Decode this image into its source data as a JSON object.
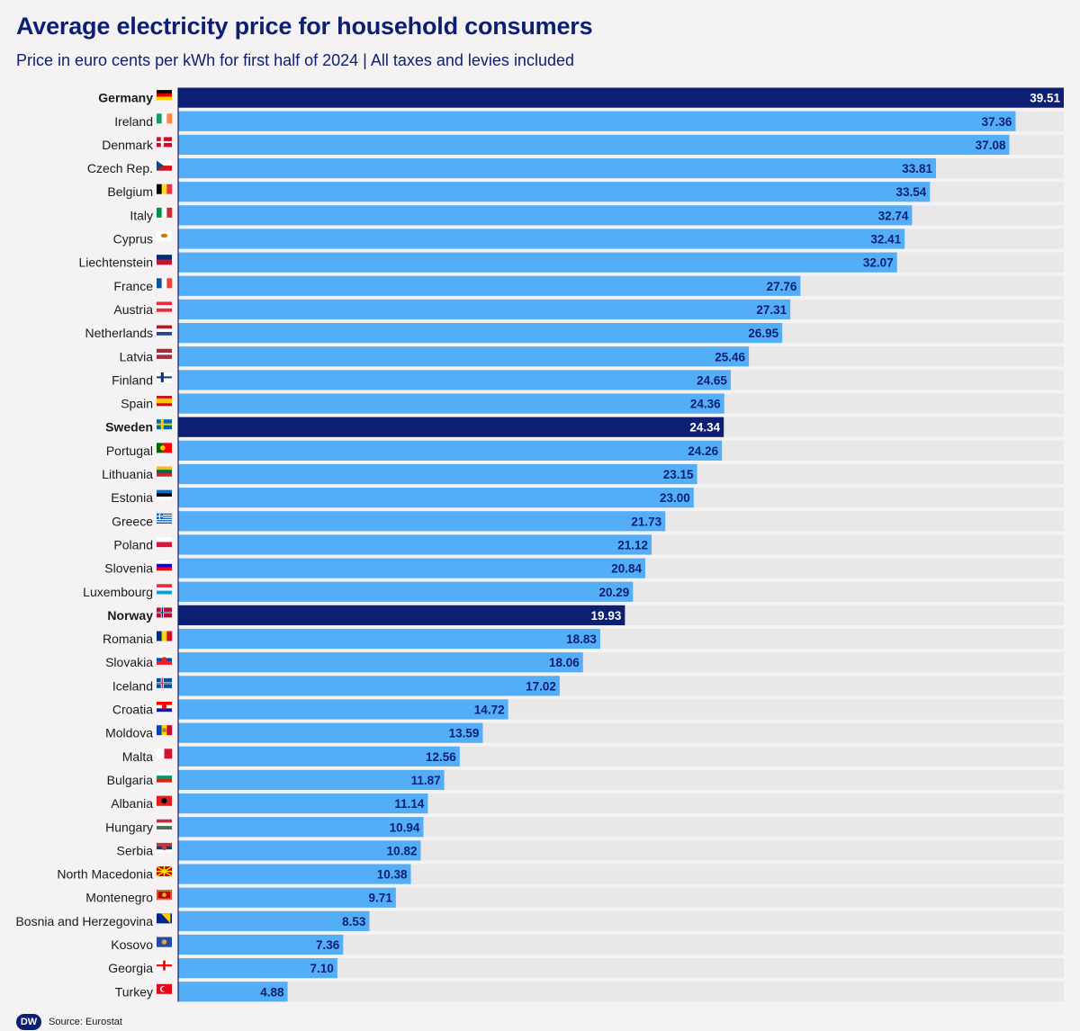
{
  "colors": {
    "bar": "#54aef7",
    "highlight": "#0c1f73",
    "track": "#e9e7e8",
    "value_dark": "#0c1f73",
    "value_light": "#ffffff"
  },
  "footer": {
    "logo": "DW",
    "source": "Source: Eurostat"
  },
  "chart_data": {
    "type": "bar",
    "orientation": "horizontal",
    "title": "Average electricity price for household consumers",
    "subtitle": "Price in euro cents per kWh for first half of 2024 | All taxes and levies included",
    "xlabel": "",
    "ylabel": "",
    "xlim": [
      0,
      39.51
    ],
    "grid": false,
    "highlighted": [
      "Germany",
      "Sweden",
      "Norway"
    ],
    "categories": [
      "Germany",
      "Ireland",
      "Denmark",
      "Czech Rep.",
      "Belgium",
      "Italy",
      "Cyprus",
      "Liechtenstein",
      "France",
      "Austria",
      "Netherlands",
      "Latvia",
      "Finland",
      "Spain",
      "Sweden",
      "Portugal",
      "Lithuania",
      "Estonia",
      "Greece",
      "Poland",
      "Slovenia",
      "Luxembourg",
      "Norway",
      "Romania",
      "Slovakia",
      "Iceland",
      "Croatia",
      "Moldova",
      "Malta",
      "Bulgaria",
      "Albania",
      "Hungary",
      "Serbia",
      "North Macedonia",
      "Montenegro",
      "Bosnia and Herzegovina",
      "Kosovo",
      "Georgia",
      "Turkey"
    ],
    "values": [
      39.51,
      37.36,
      37.08,
      33.81,
      33.54,
      32.74,
      32.41,
      32.07,
      27.76,
      27.31,
      26.95,
      25.46,
      24.65,
      24.36,
      24.34,
      24.26,
      23.15,
      23.0,
      21.73,
      21.12,
      20.84,
      20.29,
      19.93,
      18.83,
      18.06,
      17.02,
      14.72,
      13.59,
      12.56,
      11.87,
      11.14,
      10.94,
      10.82,
      10.38,
      9.71,
      8.53,
      7.36,
      7.1,
      4.88
    ],
    "value_labels": [
      "39.51",
      "37.36",
      "37.08",
      "33.81",
      "33.54",
      "32.74",
      "32.41",
      "32.07",
      "27.76",
      "27.31",
      "26.95",
      "25.46",
      "24.65",
      "24.36",
      "24.34",
      "24.26",
      "23.15",
      "23.00",
      "21.73",
      "21.12",
      "20.84",
      "20.29",
      "19.93",
      "18.83",
      "18.06",
      "17.02",
      "14.72",
      "13.59",
      "12.56",
      "11.87",
      "11.14",
      "10.94",
      "10.82",
      "10.38",
      "9.71",
      "8.53",
      "7.36",
      "7.10",
      "4.88"
    ],
    "flag_icons": [
      "germany-flag-icon",
      "ireland-flag-icon",
      "denmark-flag-icon",
      "czech-flag-icon",
      "belgium-flag-icon",
      "italy-flag-icon",
      "cyprus-flag-icon",
      "liechtenstein-flag-icon",
      "france-flag-icon",
      "austria-flag-icon",
      "netherlands-flag-icon",
      "latvia-flag-icon",
      "finland-flag-icon",
      "spain-flag-icon",
      "sweden-flag-icon",
      "portugal-flag-icon",
      "lithuania-flag-icon",
      "estonia-flag-icon",
      "greece-flag-icon",
      "poland-flag-icon",
      "slovenia-flag-icon",
      "luxembourg-flag-icon",
      "norway-flag-icon",
      "romania-flag-icon",
      "slovakia-flag-icon",
      "iceland-flag-icon",
      "croatia-flag-icon",
      "moldova-flag-icon",
      "malta-flag-icon",
      "bulgaria-flag-icon",
      "albania-flag-icon",
      "hungary-flag-icon",
      "serbia-flag-icon",
      "north-macedonia-flag-icon",
      "montenegro-flag-icon",
      "bosnia-flag-icon",
      "kosovo-flag-icon",
      "georgia-flag-icon",
      "turkey-flag-icon"
    ]
  }
}
